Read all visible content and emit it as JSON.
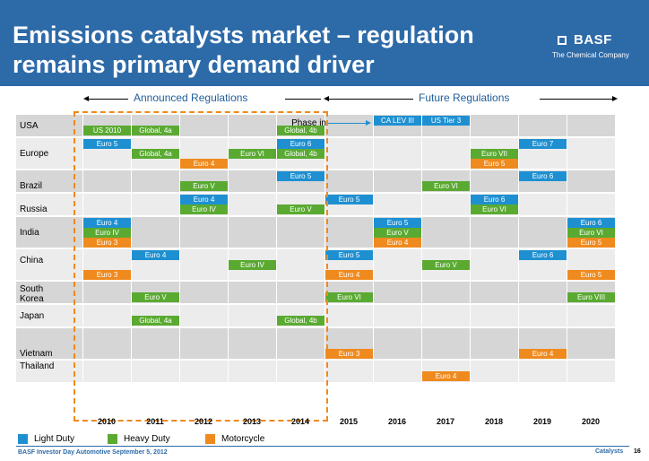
{
  "title": "Emissions catalysts market – regulation remains primary demand driver",
  "brand": {
    "name": "BASF",
    "tagline": "The Chemical Company"
  },
  "sections": {
    "announced": "Announced Regulations",
    "future": "Future Regulations"
  },
  "phase_in": "Phase in",
  "years": [
    "2010",
    "2011",
    "2012",
    "2013",
    "2014",
    "2015",
    "2016",
    "2017",
    "2018",
    "2019",
    "2020"
  ],
  "colors": {
    "light": "#1e90d2",
    "heavy": "#5aaa32",
    "moto": "#ef8a1e",
    "band_dark": "#d6d6d6",
    "band_light": "#ececec"
  },
  "countries": [
    {
      "name": "USA",
      "rows": 2,
      "label_line": 1,
      "cells": [
        {
          "line": 1,
          "from": 6,
          "to": 6,
          "text": "CA LEV III",
          "kind": "light"
        },
        {
          "line": 1,
          "from": 7,
          "to": 7,
          "text": "US Tier 3",
          "kind": "light"
        },
        {
          "line": 2,
          "from": 0,
          "to": 0,
          "text": "US 2010",
          "kind": "heavy"
        },
        {
          "line": 2,
          "from": 1,
          "to": 1,
          "text": "Global, 4a",
          "kind": "heavy"
        },
        {
          "line": 2,
          "from": 4,
          "to": 4,
          "text": "Global, 4b",
          "kind": "heavy"
        }
      ]
    },
    {
      "name": "Europe",
      "rows": 3,
      "label_line": 2,
      "cells": [
        {
          "line": 1,
          "from": 0,
          "to": 0,
          "text": "Euro 5",
          "kind": "light"
        },
        {
          "line": 1,
          "from": 4,
          "to": 4,
          "text": "Euro 6",
          "kind": "light"
        },
        {
          "line": 1,
          "from": 9,
          "to": 9,
          "text": "Euro 7",
          "kind": "light"
        },
        {
          "line": 2,
          "from": 1,
          "to": 1,
          "text": "Global, 4a",
          "kind": "heavy"
        },
        {
          "line": 2,
          "from": 3,
          "to": 3,
          "text": "Euro VI",
          "kind": "heavy"
        },
        {
          "line": 2,
          "from": 4,
          "to": 4,
          "text": "Global, 4b",
          "kind": "heavy"
        },
        {
          "line": 2,
          "from": 8,
          "to": 8,
          "text": "Euro VII",
          "kind": "heavy"
        },
        {
          "line": 3,
          "from": 2,
          "to": 2,
          "text": "Euro 4",
          "kind": "moto"
        },
        {
          "line": 3,
          "from": 8,
          "to": 8,
          "text": "Euro 5",
          "kind": "moto"
        }
      ]
    },
    {
      "name": "Brazil",
      "rows": 2,
      "label_line": 2,
      "cells": [
        {
          "line": 1,
          "from": 4,
          "to": 4,
          "text": "Euro 5",
          "kind": "light"
        },
        {
          "line": 1,
          "from": 9,
          "to": 9,
          "text": "Euro 6",
          "kind": "light"
        },
        {
          "line": 2,
          "from": 2,
          "to": 2,
          "text": "Euro V",
          "kind": "heavy"
        },
        {
          "line": 2,
          "from": 7,
          "to": 7,
          "text": "Euro VI",
          "kind": "heavy"
        }
      ]
    },
    {
      "name": "Russia",
      "rows": 2,
      "label_line": 2,
      "cells": [
        {
          "line": 1,
          "from": 2,
          "to": 2,
          "text": "Euro 4",
          "kind": "light"
        },
        {
          "line": 1,
          "from": 5,
          "to": 5,
          "text": "Euro 5",
          "kind": "light"
        },
        {
          "line": 1,
          "from": 8,
          "to": 8,
          "text": "Euro 6",
          "kind": "light"
        },
        {
          "line": 2,
          "from": 2,
          "to": 2,
          "text": "Euro IV",
          "kind": "heavy"
        },
        {
          "line": 2,
          "from": 4,
          "to": 4,
          "text": "Euro V",
          "kind": "heavy"
        },
        {
          "line": 2,
          "from": 8,
          "to": 8,
          "text": "Euro VI",
          "kind": "heavy"
        }
      ]
    },
    {
      "name": "India",
      "rows": 3,
      "label_line": 2,
      "cells": [
        {
          "line": 1,
          "from": 0,
          "to": 0,
          "text": "Euro 4",
          "kind": "light"
        },
        {
          "line": 1,
          "from": 6,
          "to": 6,
          "text": "Euro 5",
          "kind": "light"
        },
        {
          "line": 1,
          "from": 10,
          "to": 10,
          "text": "Euro 6",
          "kind": "light"
        },
        {
          "line": 2,
          "from": 0,
          "to": 0,
          "text": "Euro IV",
          "kind": "heavy"
        },
        {
          "line": 2,
          "from": 6,
          "to": 6,
          "text": "Euro V",
          "kind": "heavy"
        },
        {
          "line": 2,
          "from": 10,
          "to": 10,
          "text": "Euro VI",
          "kind": "heavy"
        },
        {
          "line": 3,
          "from": 0,
          "to": 0,
          "text": "Euro 3",
          "kind": "moto"
        },
        {
          "line": 3,
          "from": 6,
          "to": 6,
          "text": "Euro 4",
          "kind": "moto"
        },
        {
          "line": 3,
          "from": 10,
          "to": 10,
          "text": "Euro 5",
          "kind": "moto"
        }
      ]
    },
    {
      "name": "China",
      "rows": 3,
      "label_line": 1,
      "cells": [
        {
          "line": 1,
          "from": 1,
          "to": 1,
          "text": "Euro 4",
          "kind": "light"
        },
        {
          "line": 1,
          "from": 5,
          "to": 5,
          "text": "Euro 5",
          "kind": "light"
        },
        {
          "line": 1,
          "from": 9,
          "to": 9,
          "text": "Euro 6",
          "kind": "light"
        },
        {
          "line": 2,
          "from": 3,
          "to": 3,
          "text": "Euro IV",
          "kind": "heavy"
        },
        {
          "line": 2,
          "from": 7,
          "to": 7,
          "text": "Euro V",
          "kind": "heavy"
        },
        {
          "line": 3,
          "from": 0,
          "to": 0,
          "text": "Euro 3",
          "kind": "moto"
        },
        {
          "line": 3,
          "from": 5,
          "to": 5,
          "text": "Euro 4",
          "kind": "moto"
        },
        {
          "line": 3,
          "from": 10,
          "to": 10,
          "text": "Euro 5",
          "kind": "moto"
        }
      ]
    },
    {
      "name": "South Korea",
      "rows": 2,
      "label_line": 1,
      "cells": [
        {
          "line": 2,
          "from": 1,
          "to": 1,
          "text": "Euro V",
          "kind": "heavy"
        },
        {
          "line": 2,
          "from": 5,
          "to": 5,
          "text": "Euro VI",
          "kind": "heavy"
        },
        {
          "line": 2,
          "from": 10,
          "to": 10,
          "text": "Euro VIII",
          "kind": "heavy"
        }
      ]
    },
    {
      "name": "Japan",
      "rows": 2,
      "label_line": 1,
      "cells": [
        {
          "line": 2,
          "from": 1,
          "to": 1,
          "text": "Global, 4a",
          "kind": "heavy"
        },
        {
          "line": 2,
          "from": 4,
          "to": 4,
          "text": "Global, 4b",
          "kind": "heavy"
        }
      ]
    },
    {
      "name": "Vietnam",
      "rows": 3,
      "label_line": 3,
      "cells": [
        {
          "line": 3,
          "from": 5,
          "to": 5,
          "text": "Euro 3",
          "kind": "moto"
        },
        {
          "line": 3,
          "from": 9,
          "to": 9,
          "text": "Euro 4",
          "kind": "moto"
        }
      ]
    },
    {
      "name": "Thailand",
      "rows": 2,
      "label_line": 1,
      "cells": [
        {
          "line": 2,
          "from": 7,
          "to": 7,
          "text": "Euro 4",
          "kind": "moto"
        }
      ]
    }
  ],
  "legend": [
    {
      "label": "Light Duty",
      "kind": "light"
    },
    {
      "label": "Heavy Duty",
      "kind": "heavy"
    },
    {
      "label": "Motorcycle",
      "kind": "moto"
    }
  ],
  "footer": {
    "left": "BASF Investor Day Automotive September 5, 2012",
    "right": "Catalysts",
    "page": "16"
  }
}
